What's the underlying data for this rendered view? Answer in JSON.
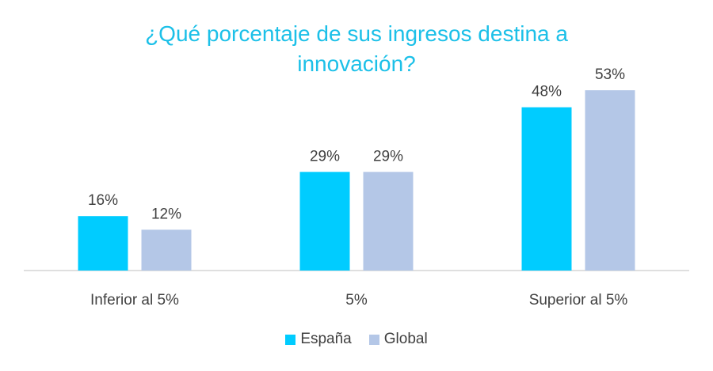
{
  "chart_data": {
    "type": "bar",
    "title_lines": [
      "¿Qué porcentaje de sus ingresos destina a",
      "innovación?"
    ],
    "categories": [
      "Inferior al 5%",
      "5%",
      "Superior al 5%"
    ],
    "series": [
      {
        "name": "España",
        "color": "#00ccff",
        "values": [
          16,
          29,
          48
        ],
        "labels": [
          "16%",
          "29%",
          "48%"
        ]
      },
      {
        "name": "Global",
        "color": "#b4c7e7",
        "values": [
          12,
          29,
          53
        ],
        "labels": [
          "12%",
          "29%",
          "53%"
        ]
      }
    ],
    "ylim": [
      0,
      60
    ],
    "grid": false,
    "legend": "bottom",
    "xlabel": "",
    "ylabel": ""
  },
  "colors": {
    "title": "#1cc0e8",
    "text": "#404040",
    "axis": "#bfbfbf"
  }
}
